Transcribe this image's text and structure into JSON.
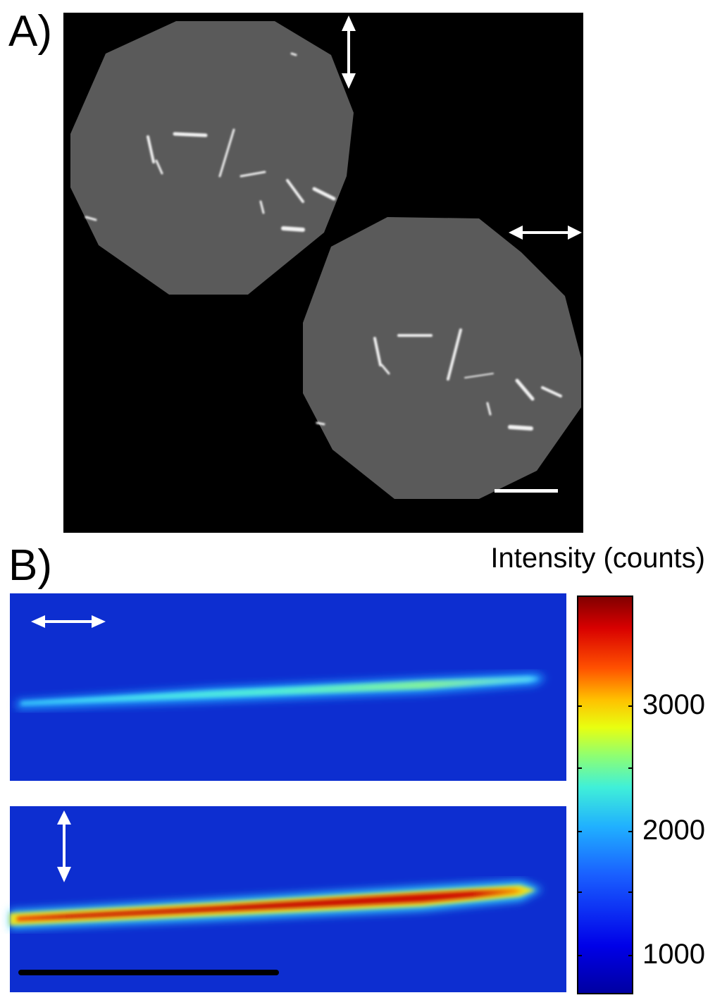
{
  "panel_a": {
    "label": "A)",
    "description": "two octagonal grey fluorescence regions containing bright rod-shaped objects on black background",
    "arrows": [
      "vertical-double-arrow-icon",
      "horizontal-double-arrow-icon"
    ],
    "scale_bar": "white-scale-bar"
  },
  "panel_b": {
    "label": "B)",
    "colorbar_title": "Intensity (counts)",
    "colorbar_ticks": [
      "3000",
      "2000",
      "1000"
    ],
    "colormap": "jet",
    "images": [
      {
        "polarization_icon": "horizontal-double-arrow-icon"
      },
      {
        "polarization_icon": "vertical-double-arrow-icon"
      }
    ]
  }
}
